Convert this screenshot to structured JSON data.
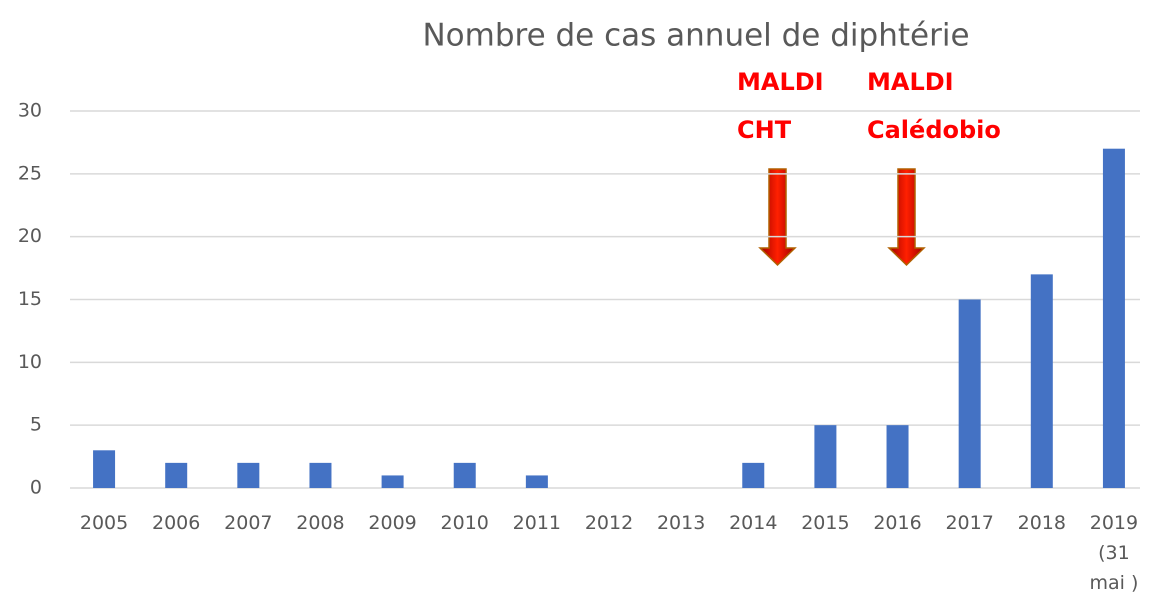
{
  "chart_data": {
    "type": "bar",
    "title": "Nombre de cas annuel de diphtérie",
    "categories": [
      "2005",
      "2006",
      "2007",
      "2008",
      "2009",
      "2010",
      "2011",
      "2012",
      "2013",
      "2014",
      "2015",
      "2016",
      "2017",
      "2018",
      "2019 (31 mai )"
    ],
    "values": [
      3,
      2,
      2,
      2,
      1,
      2,
      1,
      0,
      0,
      2,
      5,
      5,
      15,
      17,
      27
    ],
    "color": "#4472c4",
    "ylim": [
      0,
      30
    ],
    "yticks": [
      0,
      5,
      10,
      15,
      20,
      25,
      30
    ],
    "grid": true,
    "annotations": [
      {
        "lines": [
          "MALDI",
          "CHT"
        ]
      },
      {
        "lines": [
          "MALDI",
          "Calédobio"
        ]
      }
    ]
  }
}
